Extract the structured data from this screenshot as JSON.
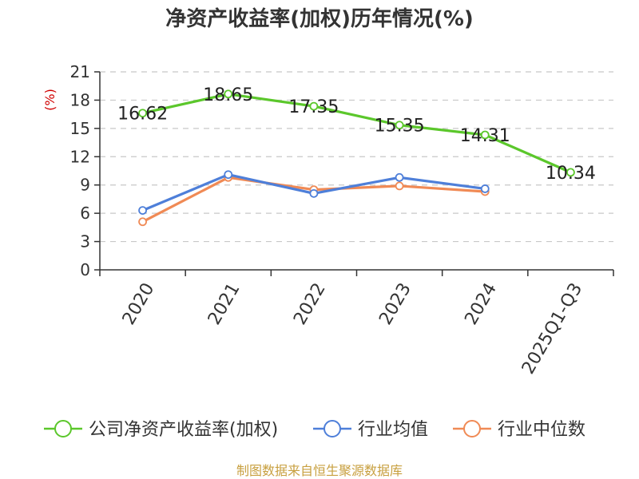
{
  "chart_data": {
    "type": "line",
    "title": "净资产收益率(加权)历年情况(%)",
    "ylabel": "(%)",
    "xlabel": "",
    "categories": [
      "2020",
      "2021",
      "2022",
      "2023",
      "2024",
      "2025Q1-Q3"
    ],
    "ylim": [
      0,
      21
    ],
    "yticks": [
      0,
      3,
      6,
      9,
      12,
      15,
      18,
      21
    ],
    "grid": true,
    "legend_position": "bottom",
    "series": [
      {
        "name": "公司净资产收益率(加权)",
        "color": "#5bc72b",
        "values": [
          16.62,
          18.65,
          17.35,
          15.35,
          14.31,
          10.34
        ],
        "labels": [
          "16.62",
          "18.65",
          "17.35",
          "15.35",
          "14.31",
          "10.34"
        ]
      },
      {
        "name": "行业均值",
        "color": "#4e7fd9",
        "values": [
          6.3,
          10.1,
          8.1,
          9.8,
          8.6,
          null
        ]
      },
      {
        "name": "行业中位数",
        "color": "#f08a55",
        "values": [
          5.1,
          9.8,
          8.5,
          8.9,
          8.3,
          null
        ]
      }
    ]
  },
  "footer": {
    "source": "制图数据来自恒生聚源数据库"
  }
}
